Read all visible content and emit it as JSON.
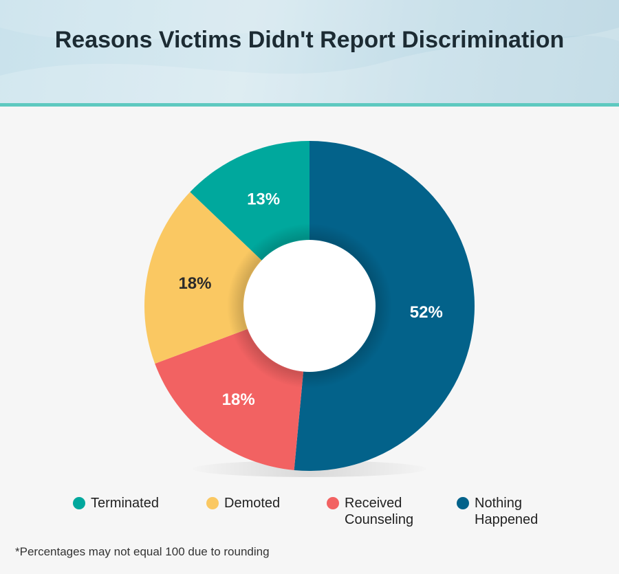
{
  "chart_data": {
    "type": "pie",
    "style": "donut",
    "title": "Reasons Victims Didn't Report Discrimination",
    "categories": [
      "Terminated",
      "Demoted",
      "Received Counseling",
      "Nothing Happened"
    ],
    "values": [
      13,
      18,
      18,
      52
    ],
    "value_labels": [
      "13%",
      "18%",
      "18%",
      "52%"
    ],
    "colors": [
      "#00a89d",
      "#fac862",
      "#f26262",
      "#03628a"
    ],
    "label_colors": [
      "#ffffff",
      "#2a2a2a",
      "#ffffff",
      "#ffffff"
    ],
    "legend_position": "bottom"
  },
  "legend": [
    {
      "label": "Terminated",
      "color": "#00a89d"
    },
    {
      "label": "Demoted",
      "color": "#fac862"
    },
    {
      "label": "Received\nCounseling",
      "color": "#f26262"
    },
    {
      "label": "Nothing\nHappened",
      "color": "#03628a"
    }
  ],
  "footnote": "*Percentages may not equal 100 due to rounding"
}
